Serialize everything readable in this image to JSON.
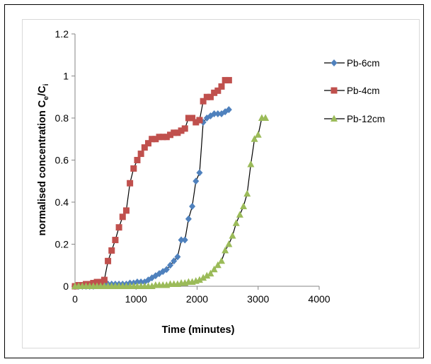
{
  "chart_data": {
    "type": "line",
    "title": "",
    "xlabel": "Time (minutes)",
    "ylabel": "normalised concentration C",
    "ylabel_sub1": "e",
    "ylabel_slash": "/C",
    "ylabel_sub2": "i",
    "xlim": [
      0,
      4000
    ],
    "ylim": [
      0,
      1.2
    ],
    "xticks": [
      0,
      1000,
      2000,
      3000,
      4000
    ],
    "yticks": [
      0,
      0.2,
      0.4,
      0.6,
      0.8,
      1,
      1.2
    ],
    "xtick_labels": [
      "0",
      "1000",
      "2000",
      "3000",
      "4000"
    ],
    "ytick_labels": [
      "0",
      "0.2",
      "0.4",
      "0.6",
      "0.8",
      "1",
      "1.2"
    ],
    "grid": false,
    "legend_position": "right",
    "series": [
      {
        "name": "Pb-6cm",
        "color": "#4f81bd",
        "marker": "diamond",
        "x": [
          0,
          60,
          120,
          180,
          240,
          300,
          360,
          420,
          480,
          540,
          600,
          660,
          720,
          780,
          840,
          900,
          960,
          1020,
          1080,
          1140,
          1200,
          1260,
          1320,
          1380,
          1440,
          1500,
          1560,
          1620,
          1680,
          1740,
          1800,
          1860,
          1920,
          1980,
          2040,
          2100,
          2160,
          2220,
          2280,
          2340,
          2400,
          2460,
          2520
        ],
        "y": [
          0,
          0,
          0,
          0,
          0,
          0,
          0.005,
          0.01,
          0.01,
          0.01,
          0.01,
          0.01,
          0.01,
          0.01,
          0.01,
          0.015,
          0.015,
          0.02,
          0.02,
          0.02,
          0.03,
          0.04,
          0.05,
          0.06,
          0.07,
          0.08,
          0.1,
          0.12,
          0.14,
          0.22,
          0.22,
          0.32,
          0.38,
          0.5,
          0.54,
          0.78,
          0.8,
          0.81,
          0.82,
          0.82,
          0.82,
          0.83,
          0.84
        ]
      },
      {
        "name": "Pb-4cm",
        "color": "#c0504d",
        "marker": "square",
        "x": [
          0,
          60,
          120,
          180,
          240,
          300,
          360,
          420,
          480,
          540,
          600,
          660,
          720,
          780,
          840,
          900,
          960,
          1020,
          1080,
          1140,
          1200,
          1260,
          1320,
          1380,
          1440,
          1500,
          1560,
          1620,
          1680,
          1740,
          1800,
          1860,
          1920,
          1980,
          2040,
          2100,
          2160,
          2220,
          2280,
          2340,
          2400,
          2460,
          2520
        ],
        "y": [
          0,
          0.005,
          0.005,
          0.01,
          0.01,
          0.015,
          0.02,
          0.02,
          0.03,
          0.12,
          0.17,
          0.22,
          0.28,
          0.33,
          0.36,
          0.49,
          0.56,
          0.6,
          0.63,
          0.66,
          0.68,
          0.7,
          0.7,
          0.71,
          0.71,
          0.71,
          0.72,
          0.73,
          0.73,
          0.74,
          0.75,
          0.8,
          0.8,
          0.78,
          0.79,
          0.88,
          0.9,
          0.9,
          0.92,
          0.93,
          0.95,
          0.98,
          0.98
        ]
      },
      {
        "name": "Pb-12cm",
        "color": "#9bbb59",
        "marker": "triangle",
        "x": [
          0,
          60,
          120,
          180,
          240,
          300,
          360,
          420,
          480,
          540,
          600,
          660,
          720,
          780,
          840,
          900,
          960,
          1020,
          1080,
          1140,
          1200,
          1260,
          1320,
          1380,
          1440,
          1500,
          1560,
          1620,
          1680,
          1740,
          1800,
          1860,
          1920,
          1980,
          2040,
          2100,
          2160,
          2220,
          2280,
          2340,
          2400,
          2460,
          2520,
          2580,
          2640,
          2700,
          2760,
          2820,
          2880,
          2940,
          3000,
          3060,
          3120
        ],
        "y": [
          0,
          0,
          0,
          0,
          0,
          0,
          0,
          0,
          0,
          0,
          0,
          0,
          0,
          0,
          0,
          0,
          0,
          0,
          0,
          0,
          0,
          0,
          0.005,
          0.005,
          0.005,
          0.005,
          0.01,
          0.01,
          0.01,
          0.015,
          0.015,
          0.02,
          0.02,
          0.025,
          0.03,
          0.04,
          0.05,
          0.06,
          0.08,
          0.1,
          0.12,
          0.17,
          0.2,
          0.24,
          0.3,
          0.34,
          0.38,
          0.44,
          0.58,
          0.7,
          0.72,
          0.8,
          0.8
        ]
      }
    ]
  }
}
